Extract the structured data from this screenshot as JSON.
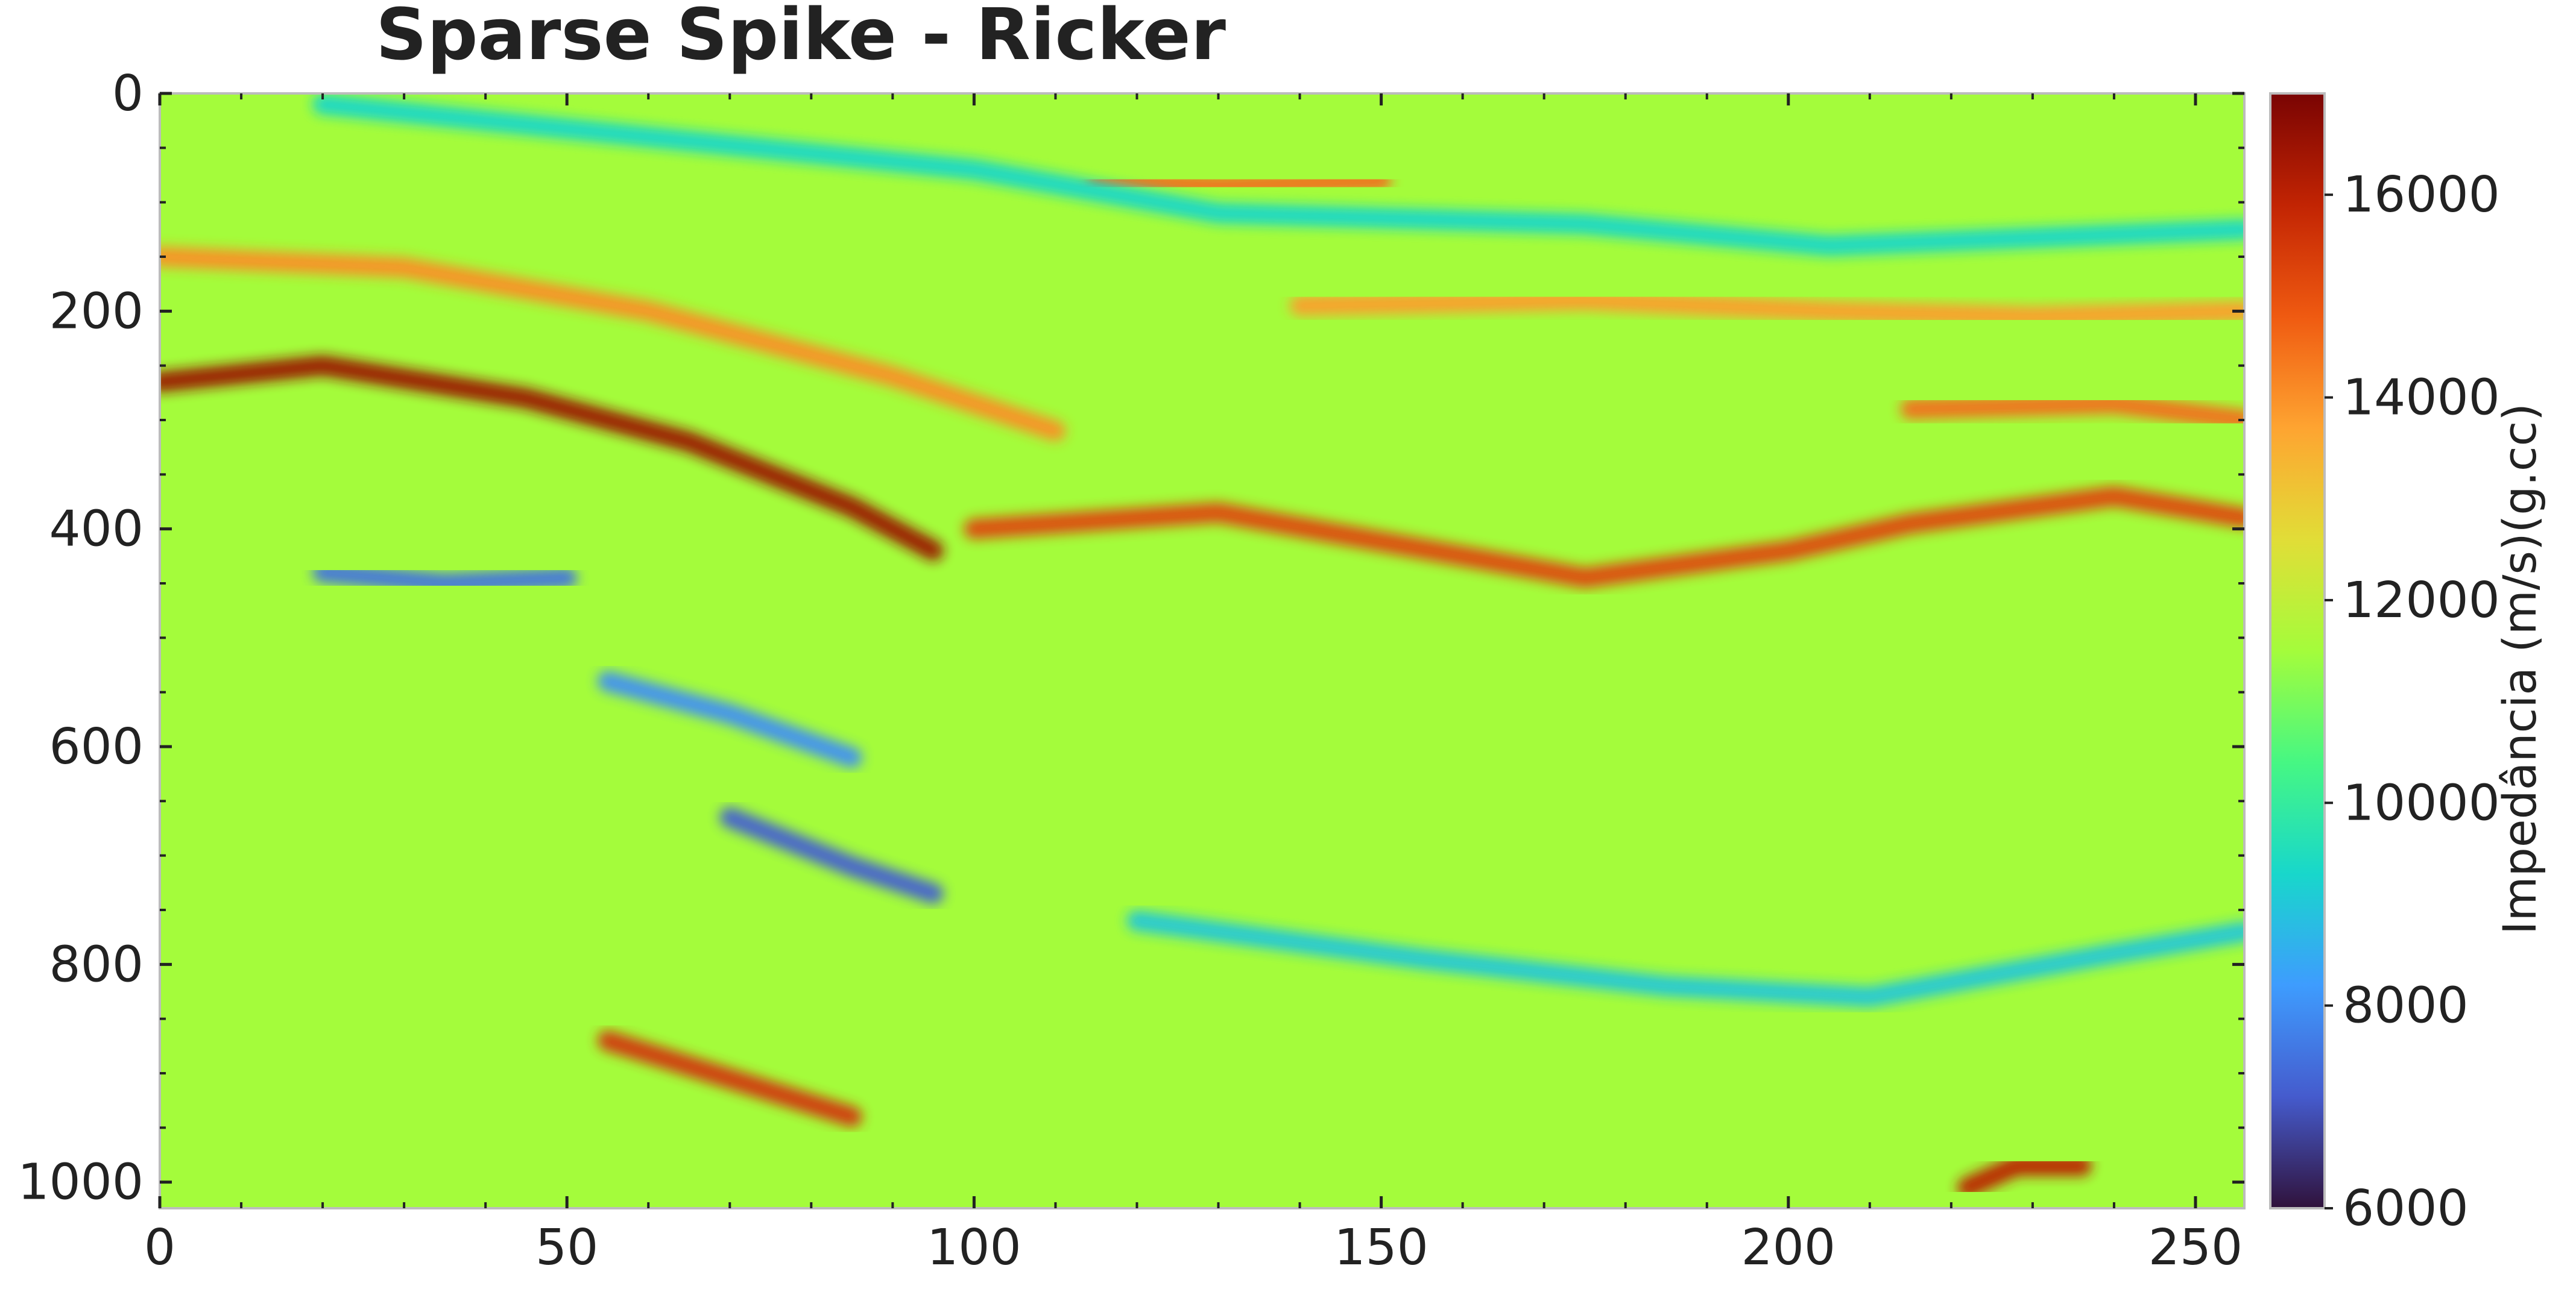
{
  "chart_data": {
    "type": "heatmap",
    "title": "Sparse Spike - Ricker",
    "xlabel": "",
    "ylabel": "",
    "x_range": [
      0,
      256
    ],
    "y_range": [
      0,
      1024
    ],
    "y_inverted": true,
    "x_ticks": [
      0,
      50,
      100,
      150,
      200,
      250
    ],
    "y_ticks": [
      0,
      200,
      400,
      600,
      800,
      1000
    ],
    "colorbar": {
      "label": "Impedância (m/s)(g.cc)",
      "range": [
        6000,
        17000
      ],
      "ticks": [
        6000,
        8000,
        10000,
        12000,
        14000,
        16000
      ],
      "colormap": "turbo",
      "position": "right"
    },
    "background_impedance": 11500,
    "features": [
      {
        "name": "strong high-impedance reflector (dipping)",
        "points": [
          [
            0,
            265
          ],
          [
            20,
            250
          ],
          [
            45,
            280
          ],
          [
            65,
            320
          ],
          [
            85,
            380
          ],
          [
            95,
            420
          ]
        ],
        "value": 16500
      },
      {
        "name": "high-impedance reflector (right)",
        "points": [
          [
            100,
            400
          ],
          [
            130,
            385
          ],
          [
            175,
            445
          ],
          [
            200,
            420
          ],
          [
            215,
            395
          ],
          [
            240,
            370
          ],
          [
            256,
            390
          ]
        ],
        "value": 15200
      },
      {
        "name": "high-impedance layer (upper left)",
        "points": [
          [
            0,
            150
          ],
          [
            30,
            160
          ],
          [
            60,
            200
          ],
          [
            90,
            260
          ],
          [
            110,
            310
          ]
        ],
        "value": 14000
      },
      {
        "name": "high-impedance reflector (upper middle)",
        "points": [
          [
            115,
            80
          ],
          [
            130,
            85
          ],
          [
            150,
            80
          ]
        ],
        "value": 14500
      },
      {
        "name": "high-impedance layer (upper right)",
        "points": [
          [
            140,
            195
          ],
          [
            175,
            190
          ],
          [
            205,
            200
          ],
          [
            230,
            205
          ],
          [
            256,
            200
          ]
        ],
        "value": 13800
      },
      {
        "name": "high-impedance reflector (right 290)",
        "points": [
          [
            215,
            290
          ],
          [
            240,
            285
          ],
          [
            256,
            300
          ]
        ],
        "value": 14500
      },
      {
        "name": "high-impedance reflector (lower left)",
        "points": [
          [
            55,
            870
          ],
          [
            70,
            905
          ],
          [
            85,
            940
          ]
        ],
        "value": 15500
      },
      {
        "name": "high-impedance reflector (bottom right)",
        "points": [
          [
            222,
            1005
          ],
          [
            228,
            985
          ],
          [
            236,
            985
          ]
        ],
        "value": 16000
      },
      {
        "name": "low-impedance reflector (left)",
        "points": [
          [
            20,
            440
          ],
          [
            35,
            450
          ],
          [
            50,
            445
          ]
        ],
        "value": 7500
      },
      {
        "name": "low-impedance reflector (middle)",
        "points": [
          [
            55,
            540
          ],
          [
            70,
            570
          ],
          [
            85,
            610
          ]
        ],
        "value": 8000
      },
      {
        "name": "low-impedance reflector (lower middle)",
        "points": [
          [
            70,
            665
          ],
          [
            85,
            710
          ],
          [
            95,
            735
          ]
        ],
        "value": 7200
      },
      {
        "name": "low-impedance trough (upper)",
        "points": [
          [
            20,
            10
          ],
          [
            60,
            40
          ],
          [
            100,
            70
          ],
          [
            130,
            110
          ],
          [
            175,
            120
          ],
          [
            205,
            140
          ],
          [
            256,
            125
          ]
        ],
        "value": 9300
      },
      {
        "name": "low-impedance band (lower right)",
        "points": [
          [
            120,
            760
          ],
          [
            155,
            795
          ],
          [
            185,
            820
          ],
          [
            210,
            830
          ],
          [
            240,
            790
          ],
          [
            256,
            770
          ]
        ],
        "value": 9000
      }
    ]
  }
}
